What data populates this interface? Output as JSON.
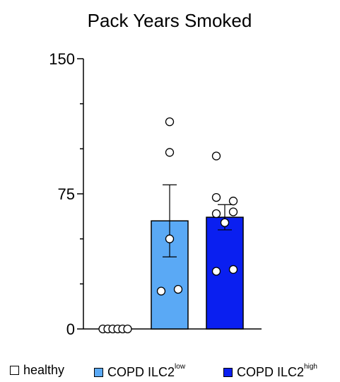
{
  "chart_data": {
    "type": "bar",
    "title": "Pack Years Smoked",
    "xlabel": "",
    "ylabel": "",
    "ylim": [
      0,
      150
    ],
    "yticks": [
      {
        "value": 0,
        "label": "0"
      },
      {
        "value": 75,
        "label": "75"
      },
      {
        "value": 150,
        "label": "150"
      }
    ],
    "minor_ticks": [
      25,
      50,
      100,
      125
    ],
    "grid": false,
    "legend_position": "bottom",
    "categories": [
      "healthy",
      "COPD ILC2 low",
      "COPD ILC2 high"
    ],
    "series": [
      {
        "name": "healthy",
        "legend_base": "healthy",
        "legend_sup": "",
        "mean": 0,
        "sem": 0,
        "fill": "#ffffff",
        "points": [
          0,
          0,
          0,
          0,
          0,
          0
        ]
      },
      {
        "name": "COPD ILC2 low",
        "legend_base": "COPD ILC2",
        "legend_sup": "low",
        "mean": 60,
        "sem": 20,
        "fill": "#5aa9f5",
        "points": [
          115,
          98,
          50,
          21,
          22
        ]
      },
      {
        "name": "COPD ILC2 high",
        "legend_base": "COPD ILC2",
        "legend_sup": "high",
        "mean": 62,
        "sem": 7,
        "fill": "#0a1ff0",
        "points": [
          96,
          73,
          71,
          65,
          64,
          59,
          32,
          33
        ]
      }
    ]
  }
}
